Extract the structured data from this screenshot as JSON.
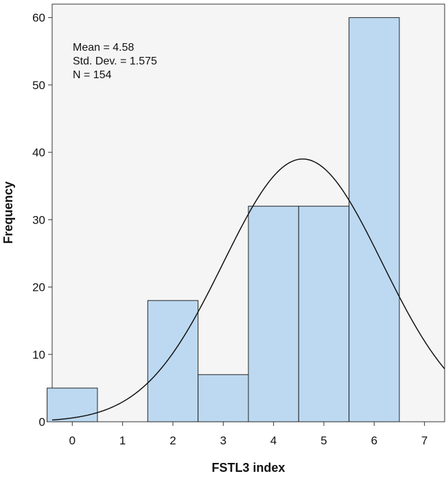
{
  "chart_data": {
    "type": "bar",
    "subtype": "histogram",
    "x_centers": [
      0,
      1,
      2,
      3,
      4,
      5,
      6
    ],
    "values": [
      5,
      0,
      18,
      7,
      32,
      32,
      60
    ],
    "bin_width": 1,
    "xlabel": "FSTL3 index",
    "ylabel": "Frequency",
    "xlim": [
      -0.4,
      7.4
    ],
    "ylim": [
      0,
      62
    ],
    "x_ticks": [
      0,
      1,
      2,
      3,
      4,
      5,
      6,
      7
    ],
    "y_ticks": [
      0,
      10,
      20,
      30,
      40,
      50,
      60
    ],
    "stats": {
      "mean": "Mean = 4.58",
      "sd": "Std. Dev. = 1.575",
      "n": "N = 154"
    },
    "normal_curve": {
      "mean": 4.58,
      "sd": 1.575,
      "n": 154
    },
    "grid": false,
    "colors": {
      "bar_fill": "#bdd9f1",
      "bar_stroke": "#222222",
      "plot_background": "#f5f5f5",
      "curve": "#111111"
    }
  }
}
